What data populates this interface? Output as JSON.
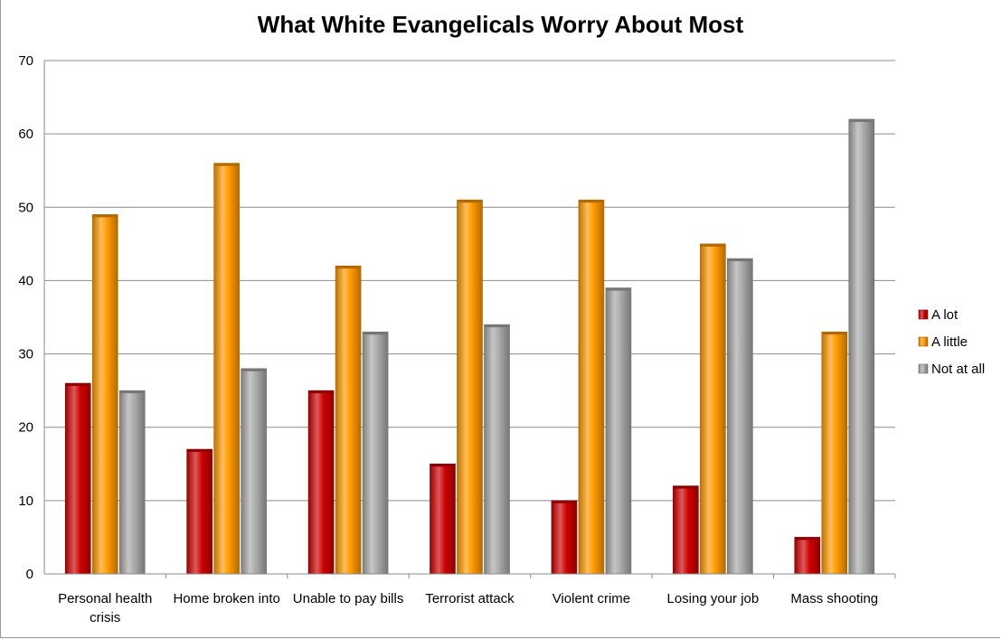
{
  "chart_data": {
    "type": "bar",
    "title": "What White Evangelicals Worry About Most",
    "categories": [
      [
        "Personal health",
        "crisis"
      ],
      [
        "Home broken into"
      ],
      [
        "Unable to pay bills"
      ],
      [
        "Terrorist attack"
      ],
      [
        "Violent crime"
      ],
      [
        "Losing your job"
      ],
      [
        "Mass shooting"
      ]
    ],
    "series": [
      {
        "name": "A lot",
        "color": "#cc0000",
        "values": [
          26,
          17,
          25,
          15,
          10,
          12,
          5
        ]
      },
      {
        "name": "A little",
        "color": "#ff9900",
        "values": [
          49,
          56,
          42,
          51,
          51,
          45,
          33
        ]
      },
      {
        "name": "Not at all",
        "color": "#a8a8a8",
        "values": [
          25,
          28,
          33,
          34,
          39,
          43,
          62
        ]
      }
    ],
    "ylim": [
      0,
      70
    ],
    "yticks": [
      "0",
      "10",
      "20",
      "30",
      "40",
      "50",
      "60",
      "70"
    ],
    "grid": true,
    "legend_position": "right"
  }
}
